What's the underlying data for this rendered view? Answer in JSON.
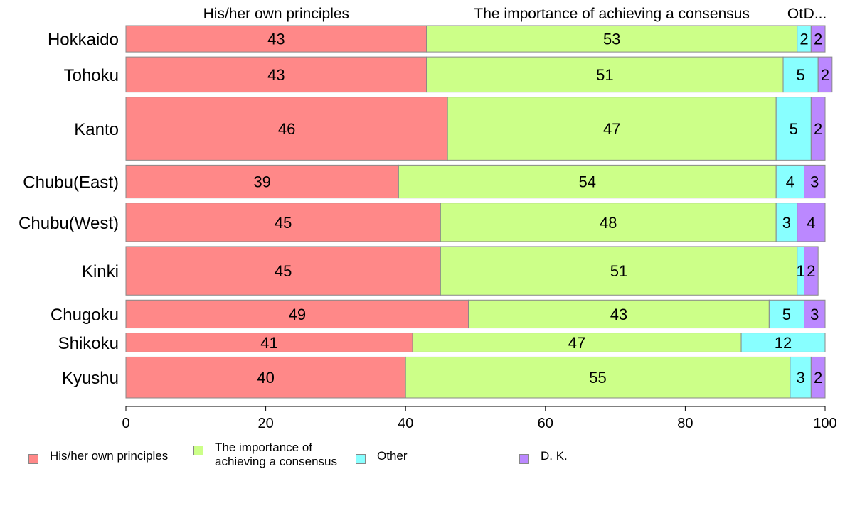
{
  "chart_data": {
    "type": "bar",
    "orientation": "horizontal",
    "stacked": true,
    "categories": [
      "Hokkaido",
      "Tohoku",
      "Kanto",
      "Chubu(East)",
      "Chubu(West)",
      "Kinki",
      "Chugoku",
      "Shikoku",
      "Kyushu"
    ],
    "bar_weights": [
      0.69,
      0.92,
      1.65,
      0.86,
      1.01,
      1.27,
      0.73,
      0.5,
      1.07
    ],
    "series": [
      {
        "name": "His/her own principles",
        "header": "His/her own principles",
        "color": "#ff8888",
        "values": [
          43,
          43,
          46,
          39,
          45,
          45,
          49,
          41,
          40
        ]
      },
      {
        "name": "The importance of achieving a consensus",
        "header": "The importance of achieving a consensus",
        "color": "#ccff88",
        "values": [
          53,
          51,
          47,
          54,
          48,
          51,
          43,
          47,
          55
        ]
      },
      {
        "name": "Other",
        "header": "Ot",
        "color": "#88ffff",
        "values": [
          2,
          5,
          5,
          4,
          3,
          1,
          5,
          12,
          3
        ]
      },
      {
        "name": "D. K.",
        "header": "D...",
        "color": "#bb88ff",
        "values": [
          2,
          2,
          2,
          3,
          4,
          2,
          3,
          0,
          2
        ]
      }
    ],
    "xlim": [
      0,
      100
    ],
    "xticks": [
      "0",
      "20",
      "40",
      "60",
      "80",
      "100"
    ],
    "legend_placement": "bottom",
    "grid": false
  },
  "legend": {
    "items": [
      {
        "label": "His/her own principles",
        "color": "#ff8888"
      },
      {
        "label": "The importance of\nachieving a consensus",
        "color": "#ccff88"
      },
      {
        "label": "Other",
        "color": "#88ffff"
      },
      {
        "label": "D. K.",
        "color": "#bb88ff"
      }
    ]
  }
}
